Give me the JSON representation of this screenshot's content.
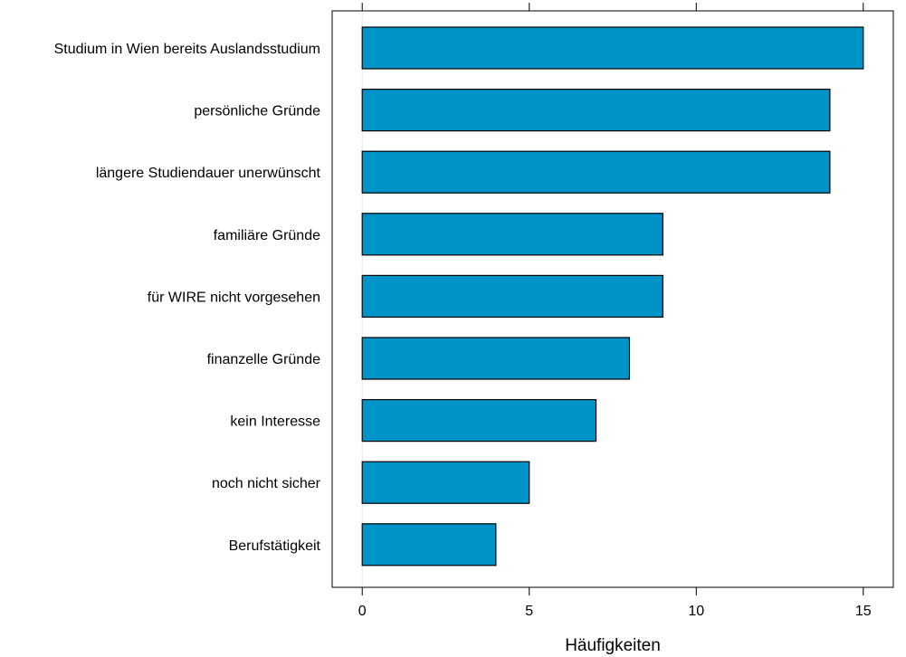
{
  "chart_data": {
    "type": "bar",
    "orientation": "horizontal",
    "categories": [
      "Studium in Wien bereits Auslandsstudium",
      "persönliche Gründe",
      "längere Studiendauer unerwünscht",
      "familiäre Gründe",
      "für WIRE nicht vorgesehen",
      "finanzelle Gründe",
      "kein Interesse",
      "noch nicht sicher",
      "Berufstätigkeit"
    ],
    "values": [
      15,
      14,
      14,
      9,
      9,
      8,
      7,
      5,
      4
    ],
    "xlabel": "Häufigkeiten",
    "ylabel": "",
    "title": "",
    "xlim": [
      -0.9,
      15.9
    ],
    "xticks": [
      0,
      5,
      10,
      15
    ],
    "xtick_labels": [
      "0",
      "5",
      "10",
      "15"
    ],
    "bar_color": "#0093c8",
    "bar_edge_color": "#000000",
    "zero_line_color": "#e6e6e6",
    "grid": false,
    "legend": "none"
  }
}
